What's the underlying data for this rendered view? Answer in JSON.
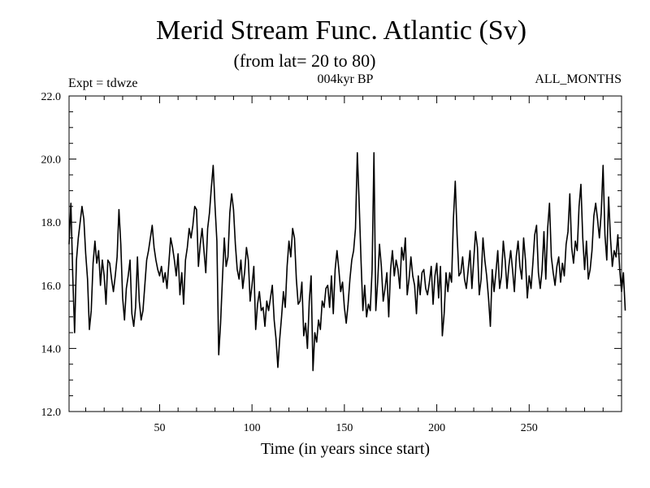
{
  "chart_data": {
    "type": "line",
    "title": "Merid Stream Func. Atlantic (Sv)",
    "subtitle": "(from lat= 20 to 80)",
    "annotations": {
      "left": "Expt = tdwze",
      "center": "004kyr BP",
      "right": "ALL_MONTHS"
    },
    "xlabel": "Time (in years since start)",
    "ylabel": "",
    "xlim": [
      1,
      300
    ],
    "ylim": [
      12.0,
      22.0
    ],
    "x_ticks": [
      50,
      100,
      150,
      200,
      250
    ],
    "y_ticks": [
      "12.0",
      "14.0",
      "16.0",
      "18.0",
      "20.0",
      "22.0"
    ],
    "grid": false,
    "series": [
      {
        "x_start": 1,
        "x_step": 1,
        "color": "#000000",
        "values": [
          17.3,
          18.6,
          16.3,
          14.5,
          16.8,
          17.5,
          18.0,
          18.5,
          18.1,
          17.0,
          16.2,
          14.6,
          15.2,
          16.7,
          17.4,
          16.7,
          17.1,
          16.0,
          16.8,
          16.3,
          15.4,
          16.8,
          16.7,
          16.2,
          15.8,
          16.3,
          16.9,
          18.4,
          17.3,
          15.6,
          14.9,
          15.9,
          16.3,
          16.8,
          15.1,
          14.7,
          15.3,
          16.9,
          15.5,
          14.9,
          15.2,
          16.0,
          16.8,
          17.1,
          17.5,
          17.9,
          17.2,
          16.8,
          16.5,
          16.3,
          16.6,
          16.1,
          16.4,
          15.9,
          16.7,
          17.5,
          17.2,
          16.8,
          16.3,
          17.0,
          15.7,
          16.4,
          15.4,
          16.8,
          17.2,
          17.8,
          17.5,
          17.9,
          18.5,
          18.4,
          16.6,
          17.3,
          17.8,
          17.1,
          16.4,
          17.8,
          18.3,
          19.1,
          19.8,
          18.5,
          17.4,
          13.8,
          14.8,
          16.2,
          17.5,
          16.6,
          16.9,
          18.3,
          18.9,
          18.4,
          17.3,
          16.5,
          16.2,
          16.8,
          15.9,
          16.4,
          17.2,
          16.8,
          15.5,
          16.0,
          16.6,
          14.6,
          15.4,
          15.8,
          15.2,
          15.3,
          14.7,
          15.5,
          15.2,
          15.6,
          16.0,
          14.9,
          14.3,
          13.4,
          14.3,
          15.0,
          15.8,
          15.3,
          16.6,
          17.4,
          16.9,
          17.8,
          17.5,
          16.2,
          15.4,
          15.5,
          16.1,
          14.4,
          14.8,
          14.0,
          15.5,
          16.3,
          13.3,
          14.5,
          14.2,
          14.9,
          14.6,
          15.5,
          15.3,
          15.9,
          16.0,
          15.3,
          16.3,
          15.1,
          16.5,
          17.1,
          16.5,
          15.8,
          16.1,
          15.3,
          14.8,
          15.4,
          16.2,
          16.8,
          17.1,
          17.8,
          20.2,
          18.6,
          16.8,
          15.2,
          16.0,
          15.0,
          15.4,
          15.2,
          16.5,
          20.2,
          15.2,
          16.1,
          17.3,
          16.6,
          15.5,
          15.9,
          16.4,
          15.0,
          16.5,
          17.1,
          16.3,
          16.8,
          16.5,
          15.9,
          17.2,
          16.8,
          17.5,
          15.7,
          16.2,
          16.9,
          16.3,
          16.0,
          15.1,
          16.3,
          15.7,
          16.4,
          16.5,
          15.9,
          15.7,
          16.1,
          16.6,
          15.4,
          16.3,
          16.7,
          15.6,
          16.6,
          14.4,
          15.1,
          16.4,
          15.8,
          16.4,
          16.1,
          18.1,
          19.3,
          17.6,
          16.3,
          16.4,
          16.9,
          16.2,
          15.9,
          16.5,
          17.1,
          15.9,
          16.8,
          17.7,
          17.2,
          15.7,
          16.2,
          17.5,
          16.8,
          16.3,
          15.6,
          14.7,
          16.5,
          15.8,
          16.4,
          17.1,
          15.9,
          16.3,
          17.4,
          16.8,
          15.9,
          16.6,
          17.1,
          16.5,
          15.8,
          16.9,
          17.4,
          16.6,
          16.2,
          17.5,
          16.8,
          15.6,
          16.3,
          15.9,
          16.7,
          17.6,
          17.9,
          16.4,
          15.9,
          16.5,
          17.7,
          16.2,
          17.8,
          18.6,
          16.9,
          16.4,
          16.0,
          16.6,
          16.9,
          16.1,
          16.7,
          16.3,
          17.3,
          17.7,
          18.9,
          17.2,
          16.7,
          17.4,
          17.1,
          18.5,
          19.2,
          17.5,
          16.5,
          17.4,
          16.2,
          16.5,
          17.1,
          18.2,
          18.6,
          18.1,
          17.5,
          18.3,
          19.8,
          17.6,
          16.8,
          18.8,
          17.5,
          16.6,
          17.1,
          16.9,
          17.6,
          16.5,
          15.8,
          16.4,
          15.2
        ]
      }
    ]
  }
}
